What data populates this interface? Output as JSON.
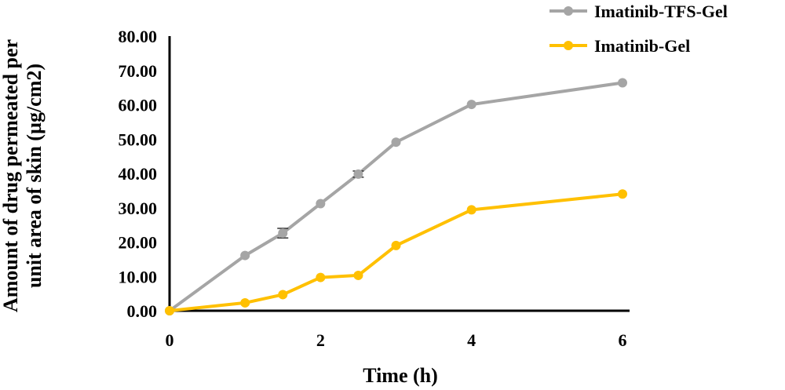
{
  "chart_data": {
    "type": "line",
    "xlabel": "Time (h)",
    "ylabel": [
      "Amount of drug permeated per",
      "unit area of skin (µg/cm2)"
    ],
    "x_ticks": [
      "0",
      "2",
      "4",
      "6"
    ],
    "y_ticks": [
      "0.00",
      "10.00",
      "20.00",
      "30.00",
      "40.00",
      "50.00",
      "60.00",
      "70.00",
      "80.00"
    ],
    "xlim": [
      0,
      6
    ],
    "ylim": [
      0,
      80
    ],
    "grid": false,
    "legend_position": "top-right",
    "series": [
      {
        "name": "Imatinib-TFS-Gel",
        "color": "#a5a5a5",
        "x": [
          0,
          1,
          1.5,
          2,
          2.5,
          3,
          4,
          6
        ],
        "y": [
          0.0,
          16.1,
          22.6,
          31.2,
          39.8,
          49.1,
          60.1,
          66.4
        ],
        "error": [
          0,
          0,
          1.4,
          0,
          0.9,
          0,
          0,
          0
        ]
      },
      {
        "name": "Imatinib-Gel",
        "color": "#ffc000",
        "x": [
          0,
          1,
          1.5,
          2,
          2.5,
          3,
          4,
          6
        ],
        "y": [
          0.0,
          2.3,
          4.7,
          9.7,
          10.3,
          19.0,
          29.4,
          34.0
        ],
        "error": [
          0,
          0,
          0,
          0,
          0,
          0,
          0,
          0
        ]
      }
    ]
  }
}
